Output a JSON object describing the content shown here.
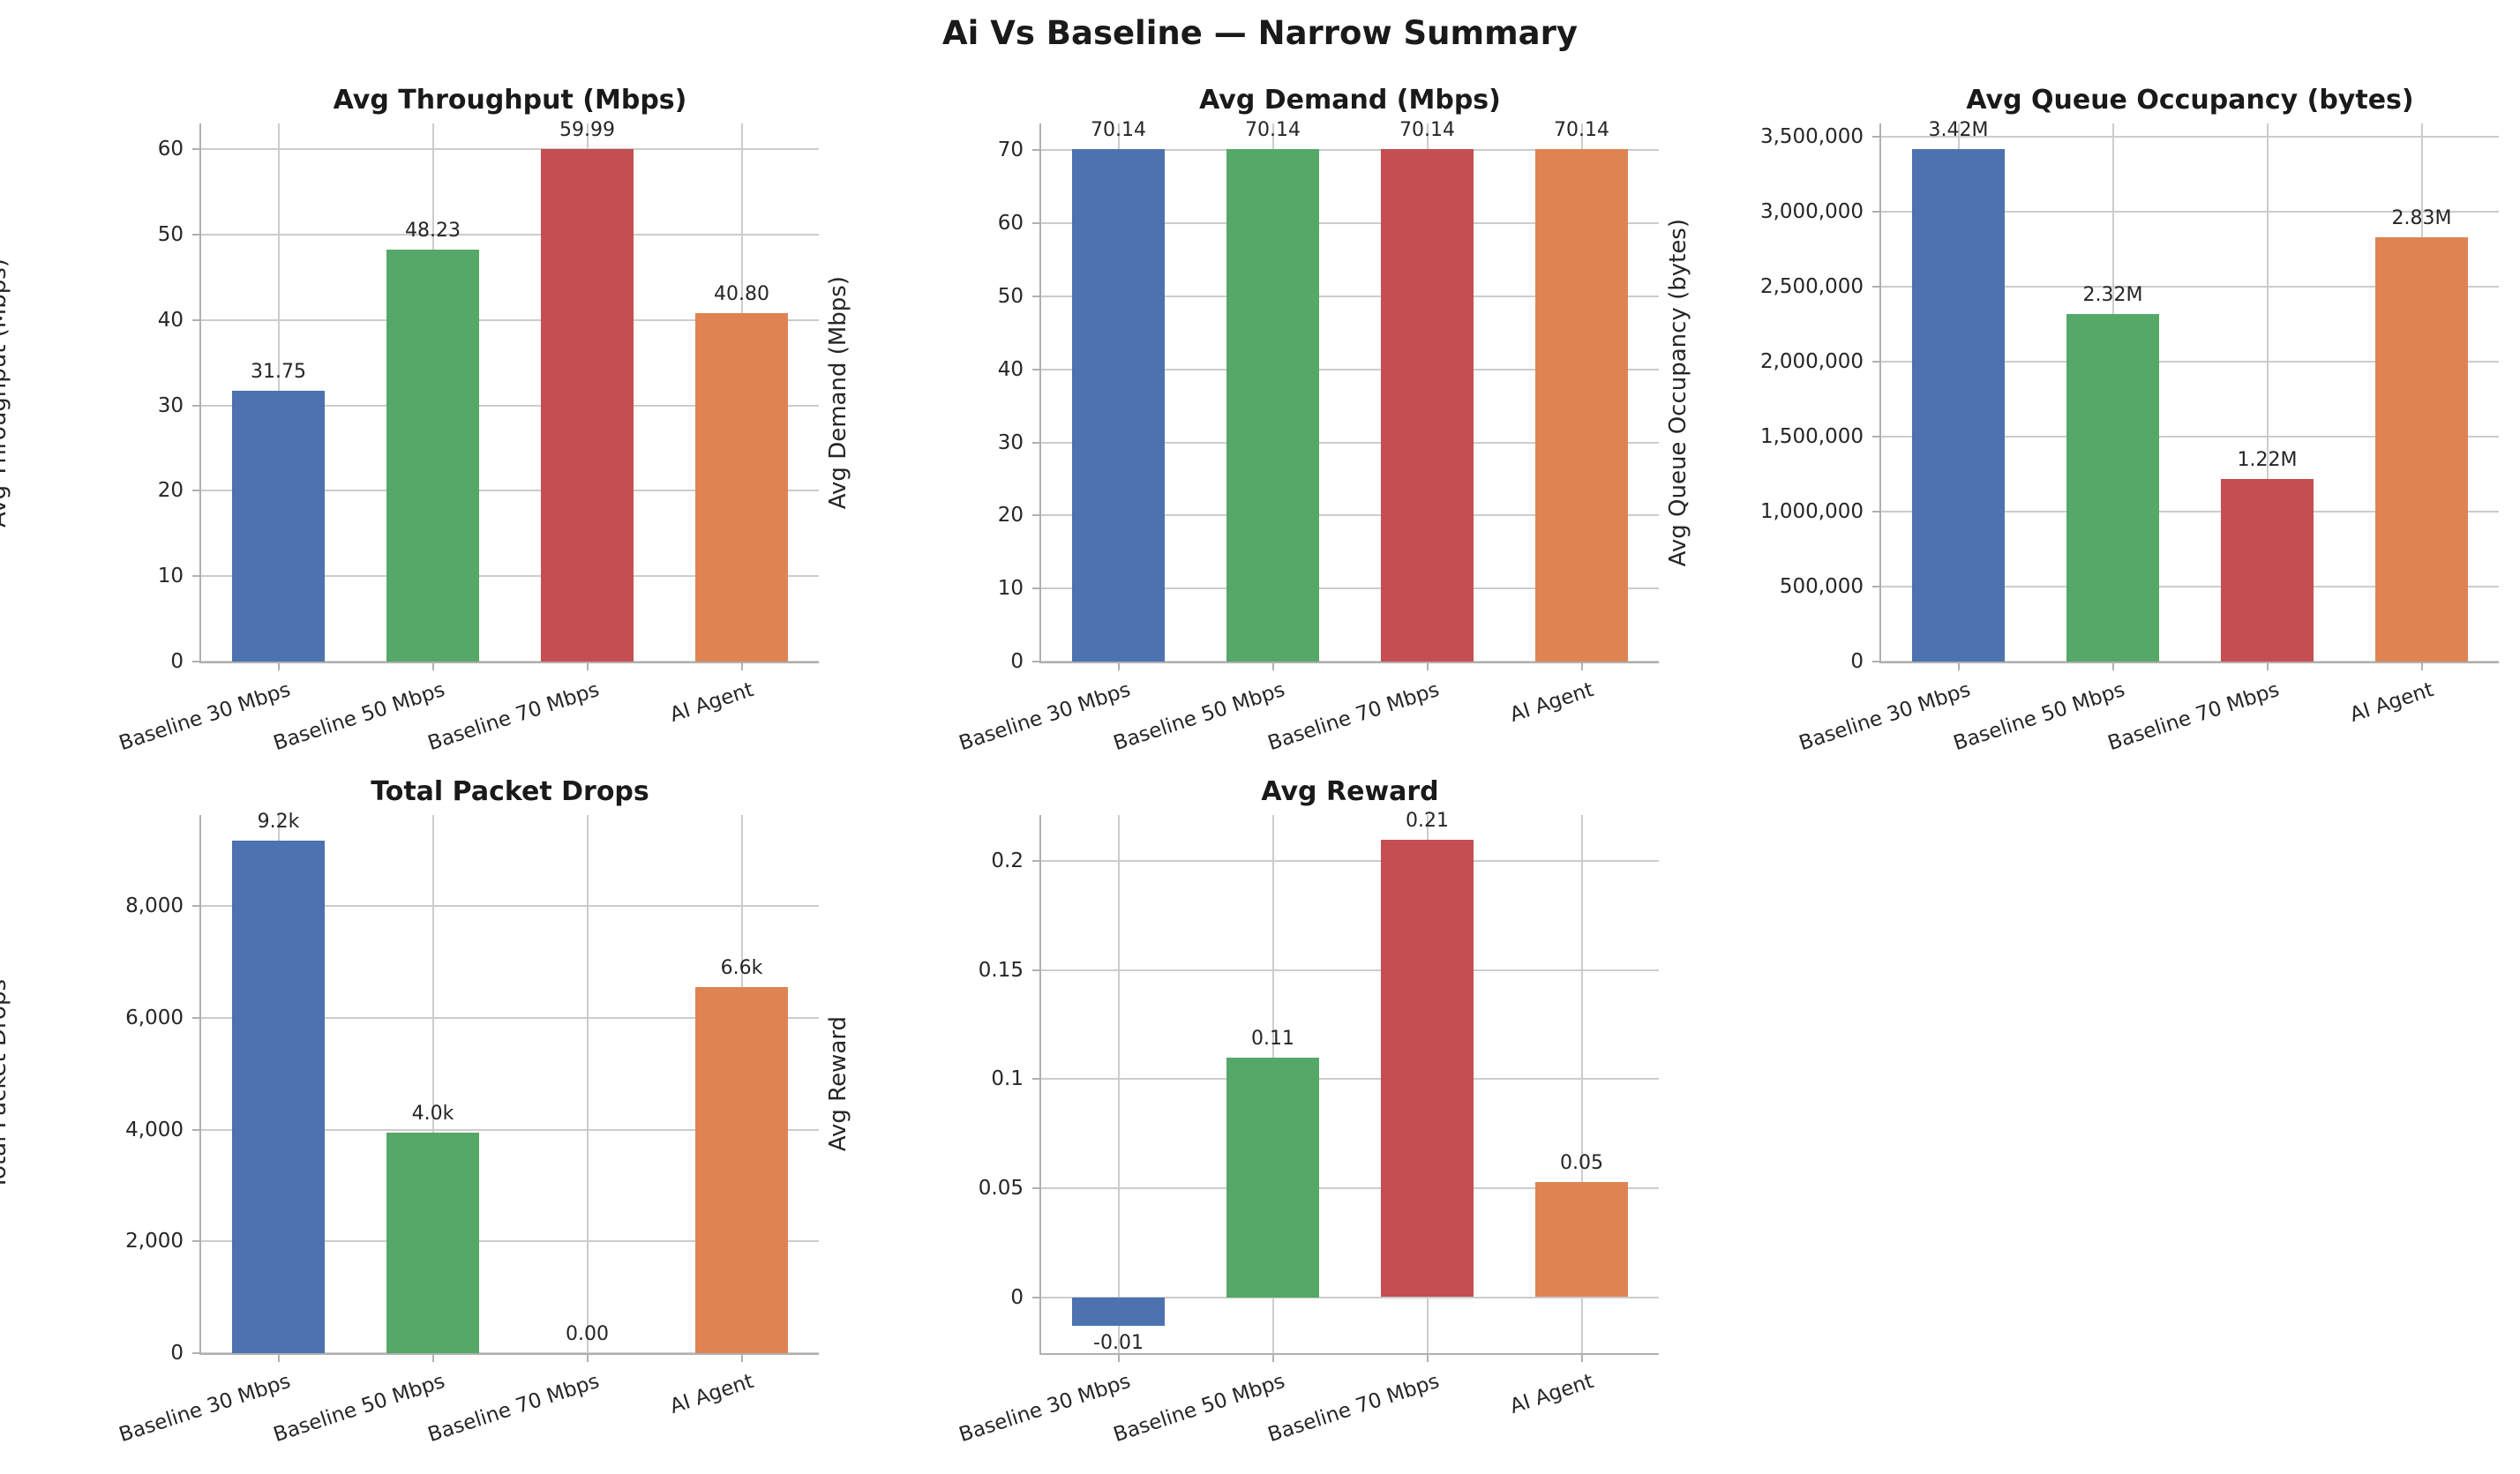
{
  "figure": {
    "suptitle": "Ai Vs Baseline — Narrow Summary",
    "background": "#ffffff",
    "text_color": "#262626",
    "grid_color": "#cccccc",
    "spine_color": "#b0b0b0",
    "palette": [
      "#4C72B0",
      "#55A868",
      "#C44E52",
      "#DD8452"
    ],
    "layout": "2 rows x 3 columns, bottom-right cell empty, grid on"
  },
  "chart_data": [
    {
      "type": "bar",
      "title": "Avg Throughput (Mbps)",
      "xlabel": "",
      "ylabel": "Avg Throughput (Mbps)",
      "categories": [
        "Baseline 30 Mbps",
        "Baseline 50 Mbps",
        "Baseline 70 Mbps",
        "AI Agent"
      ],
      "values": [
        31.75,
        48.23,
        59.99,
        40.8
      ],
      "value_labels": [
        "31.75",
        "48.23",
        "59.99",
        "40.80"
      ],
      "bar_colors": [
        "#4C72B0",
        "#55A868",
        "#C44E52",
        "#DD8452"
      ],
      "ylim": [
        0,
        63.0
      ],
      "yticks": [
        {
          "v": 0,
          "label": "0"
        },
        {
          "v": 10,
          "label": "10"
        },
        {
          "v": 20,
          "label": "20"
        },
        {
          "v": 30,
          "label": "30"
        },
        {
          "v": 40,
          "label": "40"
        },
        {
          "v": 50,
          "label": "50"
        },
        {
          "v": 60,
          "label": "60"
        }
      ],
      "grid": "both",
      "legend": false
    },
    {
      "type": "bar",
      "title": "Avg Demand (Mbps)",
      "xlabel": "",
      "ylabel": "Avg Demand (Mbps)",
      "categories": [
        "Baseline 30 Mbps",
        "Baseline 50 Mbps",
        "Baseline 70 Mbps",
        "AI Agent"
      ],
      "values": [
        70.14,
        70.14,
        70.14,
        70.14
      ],
      "value_labels": [
        "70.14",
        "70.14",
        "70.14",
        "70.14"
      ],
      "bar_colors": [
        "#4C72B0",
        "#55A868",
        "#C44E52",
        "#DD8452"
      ],
      "ylim": [
        0,
        73.65
      ],
      "yticks": [
        {
          "v": 0,
          "label": "0"
        },
        {
          "v": 10,
          "label": "10"
        },
        {
          "v": 20,
          "label": "20"
        },
        {
          "v": 30,
          "label": "30"
        },
        {
          "v": 40,
          "label": "40"
        },
        {
          "v": 50,
          "label": "50"
        },
        {
          "v": 60,
          "label": "60"
        },
        {
          "v": 70,
          "label": "70"
        }
      ],
      "grid": "both",
      "legend": false
    },
    {
      "type": "bar",
      "title": "Avg Queue Occupancy (bytes)",
      "xlabel": "",
      "ylabel": "Avg Queue Occupancy (bytes)",
      "categories": [
        "Baseline 30 Mbps",
        "Baseline 50 Mbps",
        "Baseline 70 Mbps",
        "AI Agent"
      ],
      "values": [
        3420000,
        2320000,
        1220000,
        2830000
      ],
      "value_labels": [
        "3.42M",
        "2.32M",
        "1.22M",
        "2.83M"
      ],
      "bar_colors": [
        "#4C72B0",
        "#55A868",
        "#C44E52",
        "#DD8452"
      ],
      "ylim": [
        0,
        3591000
      ],
      "yticks": [
        {
          "v": 0,
          "label": "0"
        },
        {
          "v": 500000,
          "label": "500,000"
        },
        {
          "v": 1000000,
          "label": "1,000,000"
        },
        {
          "v": 1500000,
          "label": "1,500,000"
        },
        {
          "v": 2000000,
          "label": "2,000,000"
        },
        {
          "v": 2500000,
          "label": "2,500,000"
        },
        {
          "v": 3000000,
          "label": "3,000,000"
        },
        {
          "v": 3500000,
          "label": "3,500,000"
        }
      ],
      "grid": "both",
      "legend": false
    },
    {
      "type": "bar",
      "title": "Total Packet Drops",
      "xlabel": "",
      "ylabel": "Total Packet Drops",
      "categories": [
        "Baseline 30 Mbps",
        "Baseline 50 Mbps",
        "Baseline 70 Mbps",
        "AI Agent"
      ],
      "values": [
        9175,
        3950,
        0,
        6550
      ],
      "value_labels": [
        "9.2k",
        "4.0k",
        "0.00",
        "6.6k"
      ],
      "bar_colors": [
        "#4C72B0",
        "#55A868",
        "#C44E52",
        "#DD8452"
      ],
      "ylim": [
        0,
        9634
      ],
      "yticks": [
        {
          "v": 0,
          "label": "0"
        },
        {
          "v": 2000,
          "label": "2,000"
        },
        {
          "v": 4000,
          "label": "4,000"
        },
        {
          "v": 6000,
          "label": "6,000"
        },
        {
          "v": 8000,
          "label": "8,000"
        }
      ],
      "grid": "both",
      "legend": false
    },
    {
      "type": "bar",
      "title": "Avg Reward",
      "xlabel": "",
      "ylabel": "Avg Reward",
      "categories": [
        "Baseline 30 Mbps",
        "Baseline 50 Mbps",
        "Baseline 70 Mbps",
        "AI Agent"
      ],
      "values": [
        -0.013,
        0.11,
        0.21,
        0.053
      ],
      "value_labels": [
        "-0.01",
        "0.11",
        "0.21",
        "0.05"
      ],
      "bar_colors": [
        "#4C72B0",
        "#55A868",
        "#C44E52",
        "#DD8452"
      ],
      "ylim": [
        -0.0257,
        0.2212
      ],
      "yticks": [
        {
          "v": 0,
          "label": "0"
        },
        {
          "v": 0.05,
          "label": "0.05"
        },
        {
          "v": 0.1,
          "label": "0.1"
        },
        {
          "v": 0.15,
          "label": "0.15"
        },
        {
          "v": 0.2,
          "label": "0.2"
        }
      ],
      "grid": "both",
      "legend": false
    }
  ]
}
